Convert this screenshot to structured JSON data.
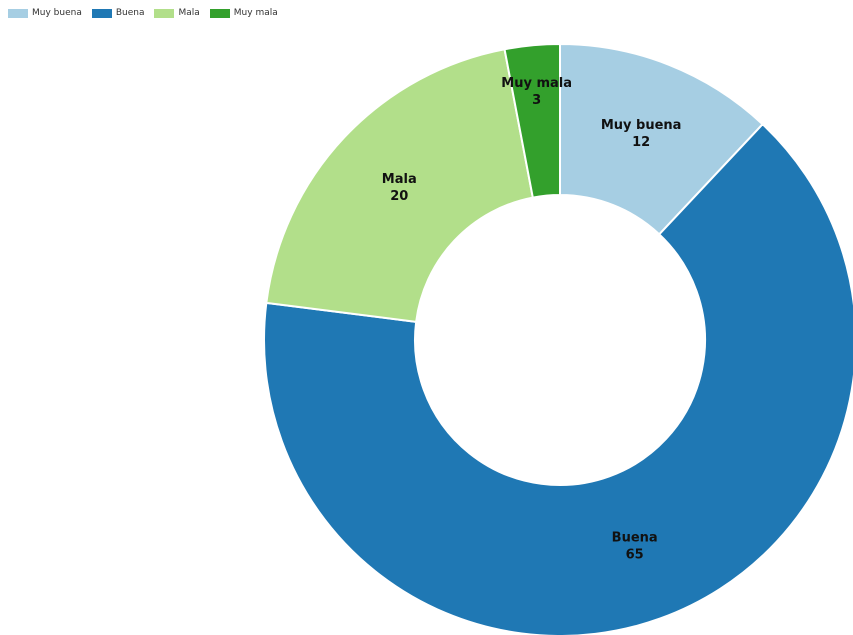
{
  "chart_data": {
    "type": "pie",
    "title": "",
    "donut": true,
    "legend_position": "top-left",
    "series": [
      {
        "name": "",
        "values": [
          12,
          65,
          20,
          3
        ]
      }
    ],
    "categories": [
      "Muy buena",
      "Buena",
      "Mala",
      "Muy mala"
    ],
    "colors": [
      "#a6cee3",
      "#1f78b4",
      "#b2df8a",
      "#33a02c"
    ],
    "data_labels": [
      "12",
      "65",
      "20",
      "3"
    ]
  }
}
